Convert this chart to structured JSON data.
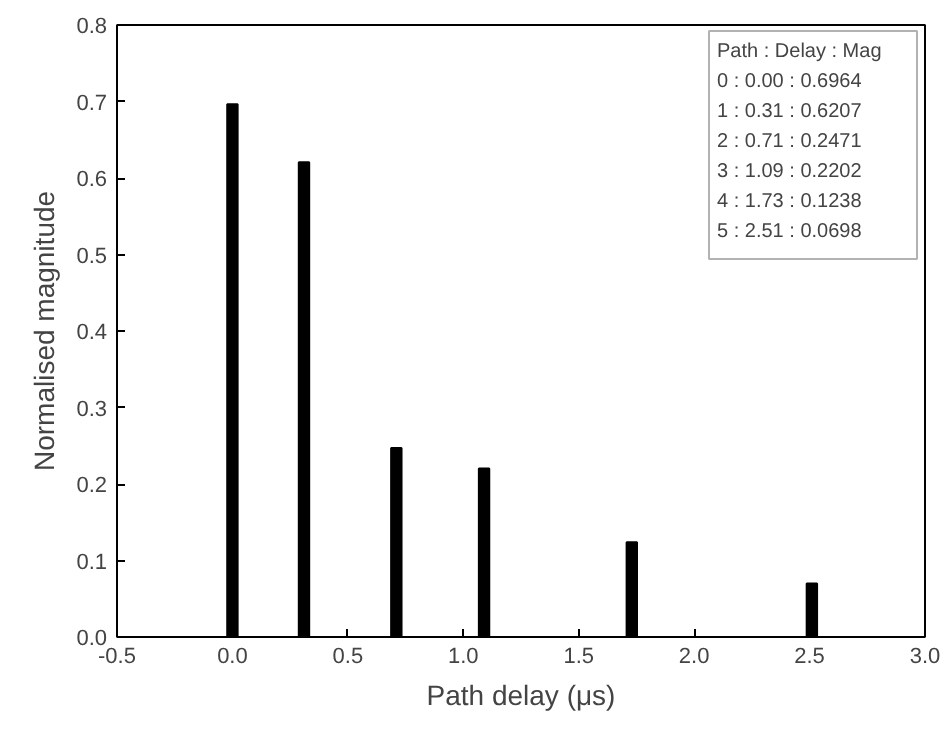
{
  "chart_data": {
    "type": "bar",
    "xlabel": "Path delay (μs)",
    "ylabel": "Normalised magnitude",
    "x": [
      0.0,
      0.31,
      0.71,
      1.09,
      1.73,
      2.51
    ],
    "values": [
      0.6964,
      0.6207,
      0.2471,
      0.2202,
      0.1238,
      0.0698
    ],
    "color": "#000000",
    "xlim": [
      -0.5,
      3.0
    ],
    "xticks": [
      -0.5,
      {
        "value": 0,
        "label": "0.0"
      },
      0.5,
      {
        "value": 1,
        "label": "1.0"
      },
      1.5,
      {
        "value": 2,
        "label": "2.0"
      },
      2.5,
      {
        "value": 3,
        "label": "3.0"
      }
    ],
    "ylim": [
      0.0,
      0.8
    ],
    "yticks": [
      {
        "value": 0,
        "label": "0.0"
      },
      0.1,
      0.2,
      0.3,
      0.4,
      0.5,
      0.6,
      0.7,
      0.8
    ],
    "annotations": [
      "Path : Delay : Mag",
      "0 : 0.00 : 0.6964",
      "1 : 0.31 : 0.6207",
      "2 : 0.71 : 0.2471",
      "3 : 1.09 : 0.2202",
      "4 : 1.73 : 0.1238",
      "5 : 2.51 : 0.0698"
    ],
    "grid": false
  }
}
